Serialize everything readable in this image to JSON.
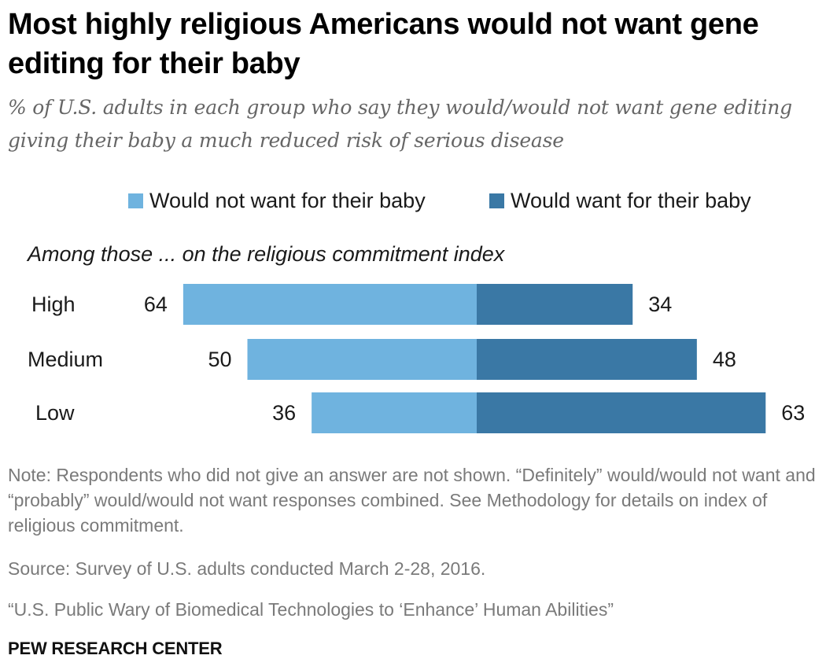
{
  "title": "Most highly religious Americans would not want gene editing for their baby",
  "subtitle": "% of U.S. adults in each group who say they would/would not want gene editing giving their baby a much reduced risk of serious disease",
  "group_label": "Among those ... on the religious commitment index",
  "note": "Note: Respondents who did not give an answer are not shown. “Definitely” would/would not want and “probably” would/would not want responses combined. See Methodology for details on index of religious commitment.",
  "source": "Source: Survey of U.S. adults conducted March 2-28, 2016.",
  "report": "“U.S. Public Wary of Biomedical Technologies to ‘Enhance’ Human Abilities”",
  "org": "PEW RESEARCH CENTER",
  "colors": {
    "would_not": "#6fb3df",
    "would": "#3a78a5"
  },
  "chart_data": {
    "type": "bar",
    "orientation": "horizontal-diverging",
    "categories": [
      "High",
      "Medium",
      "Low"
    ],
    "series": [
      {
        "name": "Would not want for their baby",
        "values": [
          64,
          50,
          36
        ],
        "color": "#6fb3df",
        "direction": "left"
      },
      {
        "name": "Would want for their baby",
        "values": [
          34,
          48,
          63
        ],
        "color": "#3a78a5",
        "direction": "right"
      }
    ],
    "title": "Most highly religious Americans would not want gene editing for their baby",
    "legend": "top",
    "grid": false
  }
}
